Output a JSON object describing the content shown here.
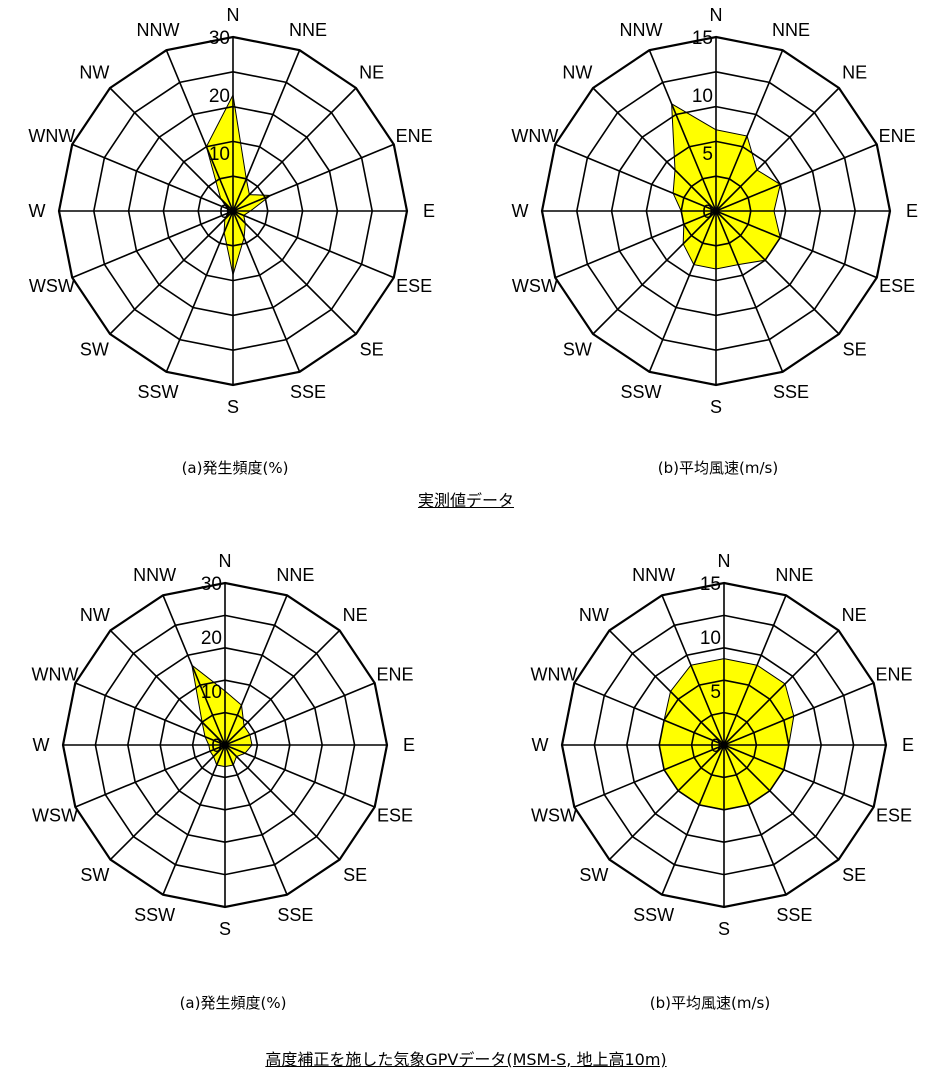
{
  "captions": {
    "freq": "(a)発生頻度(%)",
    "speed": "(b)平均風速(m/s)"
  },
  "group_titles": {
    "observed": "実測値データ",
    "gpv": "高度補正を施した気象GPVデータ(MSM-S, 地上高10m)"
  },
  "colors": {
    "fill": "#ffff00",
    "line": "#000000",
    "background": "#ffffff"
  },
  "chart_data": [
    {
      "type": "radar",
      "group": "実測値データ",
      "caption": "(a)発生頻度(%)",
      "categories": [
        "N",
        "NNE",
        "NE",
        "ENE",
        "E",
        "ESE",
        "SE",
        "SSE",
        "S",
        "SSW",
        "SW",
        "WSW",
        "W",
        "WNW",
        "NW",
        "NNW"
      ],
      "values": [
        20,
        6,
        4,
        7,
        3,
        2,
        3,
        5,
        11,
        4,
        2,
        1,
        1,
        1,
        3,
        12
      ],
      "rlim": [
        0,
        30
      ],
      "ticks": [
        0,
        10,
        20,
        30
      ],
      "grid": true
    },
    {
      "type": "radar",
      "group": "実測値データ",
      "caption": "(b)平均風速(m/s)",
      "categories": [
        "N",
        "NNE",
        "NE",
        "ENE",
        "E",
        "ESE",
        "SE",
        "SSE",
        "S",
        "SSW",
        "SW",
        "WSW",
        "W",
        "WNW",
        "NW",
        "NNW"
      ],
      "values": [
        7,
        7,
        5,
        6,
        5,
        6,
        6,
        5,
        5,
        5,
        4,
        3,
        3,
        4,
        5,
        10
      ],
      "rlim": [
        0,
        15
      ],
      "ticks": [
        0,
        5,
        10,
        15
      ],
      "grid": true
    },
    {
      "type": "radar",
      "group": "高度補正を施した気象GPVデータ(MSM-S, 地上高10m)",
      "caption": "(a)発生頻度(%)",
      "categories": [
        "N",
        "NNE",
        "NE",
        "ENE",
        "E",
        "ESE",
        "SE",
        "SSE",
        "S",
        "SSW",
        "SW",
        "WSW",
        "W",
        "WNW",
        "NW",
        "NNW"
      ],
      "values": [
        10,
        8,
        5,
        5,
        5,
        4,
        3,
        4,
        4,
        4,
        3,
        3,
        3,
        4,
        6,
        16
      ],
      "rlim": [
        0,
        30
      ],
      "ticks": [
        0,
        10,
        20,
        30
      ],
      "grid": true
    },
    {
      "type": "radar",
      "group": "高度補正を施した気象GPVデータ(MSM-S, 地上高10m)",
      "caption": "(b)平均風速(m/s)",
      "categories": [
        "N",
        "NNE",
        "NE",
        "ENE",
        "E",
        "ESE",
        "SE",
        "SSE",
        "S",
        "SSW",
        "SW",
        "WSW",
        "W",
        "WNW",
        "NW",
        "NNW"
      ],
      "values": [
        8,
        8,
        8,
        7,
        6,
        6,
        6,
        6,
        6,
        6,
        6,
        6,
        6,
        6,
        7,
        8
      ],
      "rlim": [
        0,
        15
      ],
      "ticks": [
        0,
        5,
        10,
        15
      ],
      "grid": true
    }
  ]
}
